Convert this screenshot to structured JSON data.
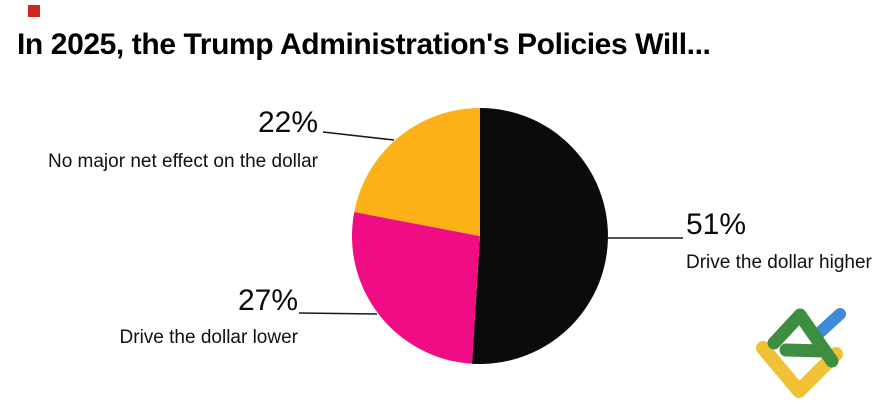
{
  "title": "In 2025, the Trump Administration's Policies Will...",
  "brand_marker": {
    "name": "red-square-bullet",
    "color": "#d0261d"
  },
  "chart_data": {
    "type": "pie",
    "title": "In 2025, the Trump Administration's Policies Will...",
    "direction": "clockwise",
    "start_angle_deg": 0,
    "legend_position": "callout-labels",
    "slices": [
      {
        "label": "Drive the dollar higher",
        "pct_label": "51%",
        "value": 51,
        "color": "#0b0b0b"
      },
      {
        "label": "Drive the dollar lower",
        "pct_label": "27%",
        "value": 27,
        "color": "#f00c84"
      },
      {
        "label": "No major net effect on the dollar",
        "pct_label": "22%",
        "value": 22,
        "color": "#fbb117"
      }
    ]
  },
  "logo": {
    "name": "LiteFinance",
    "colors": {
      "yellow": "#f0c135",
      "green": "#3e8e41",
      "blue": "#4089d8"
    }
  }
}
